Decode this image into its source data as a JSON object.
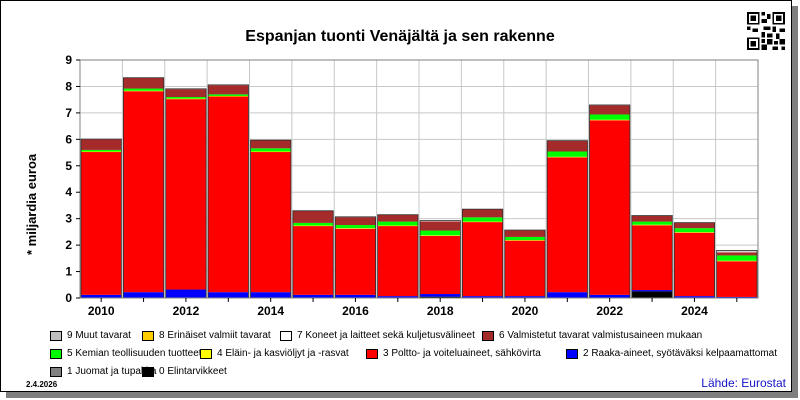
{
  "chart_data": {
    "type": "bar",
    "stacked": true,
    "title": "Espanjan tuonti Venäjältä ja sen rakenne",
    "ylabel": "* miljardia euroa",
    "ylim": [
      0,
      9
    ],
    "yticks": [
      0,
      1,
      2,
      3,
      4,
      5,
      6,
      7,
      8,
      9
    ],
    "categories": [
      "2010",
      "2011",
      "2012",
      "2013",
      "2014",
      "2015",
      "2016",
      "2017",
      "2018",
      "2019",
      "2020",
      "2021",
      "2022",
      "2023",
      "2024",
      "2025"
    ],
    "x_tick_labels": [
      "2010",
      "2012",
      "2014",
      "2016",
      "2018",
      "2020",
      "2022",
      "2024"
    ],
    "grid": true,
    "series": [
      {
        "name": "0 Elintarvikkeet",
        "color": "#000000",
        "values": [
          0.02,
          0.02,
          0.02,
          0.02,
          0.02,
          0.02,
          0.02,
          0.02,
          0.05,
          0.02,
          0.02,
          0.02,
          0.02,
          0.25,
          0.02,
          0.02
        ]
      },
      {
        "name": "1 Juomat ja tupakka",
        "color": "#808080",
        "values": [
          0,
          0,
          0,
          0,
          0,
          0,
          0,
          0,
          0,
          0,
          0,
          0,
          0,
          0,
          0,
          0
        ]
      },
      {
        "name": "2 Raaka-aineet, syötäväksi kelpaamattomat",
        "color": "#0000ff",
        "values": [
          0.1,
          0.2,
          0.3,
          0.2,
          0.2,
          0.1,
          0.1,
          0.05,
          0.1,
          0.05,
          0.05,
          0.2,
          0.1,
          0.05,
          0.05,
          0.02
        ]
      },
      {
        "name": "3 Poltto- ja voiteluaineet, sähkövirta",
        "color": "#ff0000",
        "values": [
          5.4,
          7.6,
          7.2,
          7.4,
          5.3,
          2.6,
          2.5,
          2.65,
          2.2,
          2.8,
          2.1,
          5.1,
          6.6,
          2.45,
          2.4,
          1.35
        ]
      },
      {
        "name": "4 Eläin- ja kasviöljyt ja -rasvat",
        "color": "#ffff00",
        "values": [
          0.02,
          0.02,
          0.02,
          0.02,
          0.02,
          0.02,
          0.02,
          0.02,
          0.02,
          0.02,
          0.02,
          0.02,
          0.02,
          0.02,
          0.02,
          0.02
        ]
      },
      {
        "name": "5 Kemian teollisuuden tuotteet",
        "color": "#00ff00",
        "values": [
          0.06,
          0.08,
          0.06,
          0.06,
          0.12,
          0.1,
          0.12,
          0.15,
          0.18,
          0.16,
          0.12,
          0.2,
          0.2,
          0.12,
          0.15,
          0.2
        ]
      },
      {
        "name": "6 Valmistetut tavarat valmistusaineen mukaan",
        "color": "#a52a2a",
        "values": [
          0.4,
          0.4,
          0.3,
          0.35,
          0.3,
          0.45,
          0.3,
          0.25,
          0.35,
          0.3,
          0.25,
          0.4,
          0.35,
          0.22,
          0.2,
          0.12
        ]
      },
      {
        "name": "7 Koneet ja laitteet sekä kuljetusvälineet",
        "color": "#ffffff",
        "values": [
          0.01,
          0.01,
          0.01,
          0.01,
          0.01,
          0.01,
          0.01,
          0.01,
          0.03,
          0.01,
          0.01,
          0.01,
          0.01,
          0.01,
          0.01,
          0.02
        ]
      },
      {
        "name": "8 Erinäiset valmiit tavarat",
        "color": "#ffcc00",
        "values": [
          0,
          0,
          0,
          0,
          0,
          0,
          0,
          0,
          0,
          0,
          0,
          0,
          0,
          0,
          0,
          0
        ]
      },
      {
        "name": "9 Muut tavarat",
        "color": "#c0c0c0",
        "values": [
          0,
          0,
          0,
          0,
          0,
          0,
          0,
          0,
          0,
          0,
          0,
          0,
          0,
          0,
          0,
          0.05
        ]
      }
    ]
  },
  "legend_order": [
    "9 Muut tavarat",
    "8 Erinäiset valmiit tavarat",
    "7 Koneet ja laitteet sekä kuljetusvälineet",
    "6 Valmistetut tavarat valmistusaineen mukaan",
    "5 Kemian teollisuuden tuotteet",
    "4 Eläin- ja kasviöljyt ja -rasvat",
    "3 Poltto- ja voiteluaineet, sähkövirta",
    "2 Raaka-aineet, syötäväksi kelpaamattomat",
    "1 Juomat ja tupakka",
    "0 Elintarvikkeet"
  ],
  "footer": {
    "date": "2.4.2026",
    "source": "Lähde: Eurostat"
  },
  "icons": {
    "qr": "qr-code-icon"
  }
}
